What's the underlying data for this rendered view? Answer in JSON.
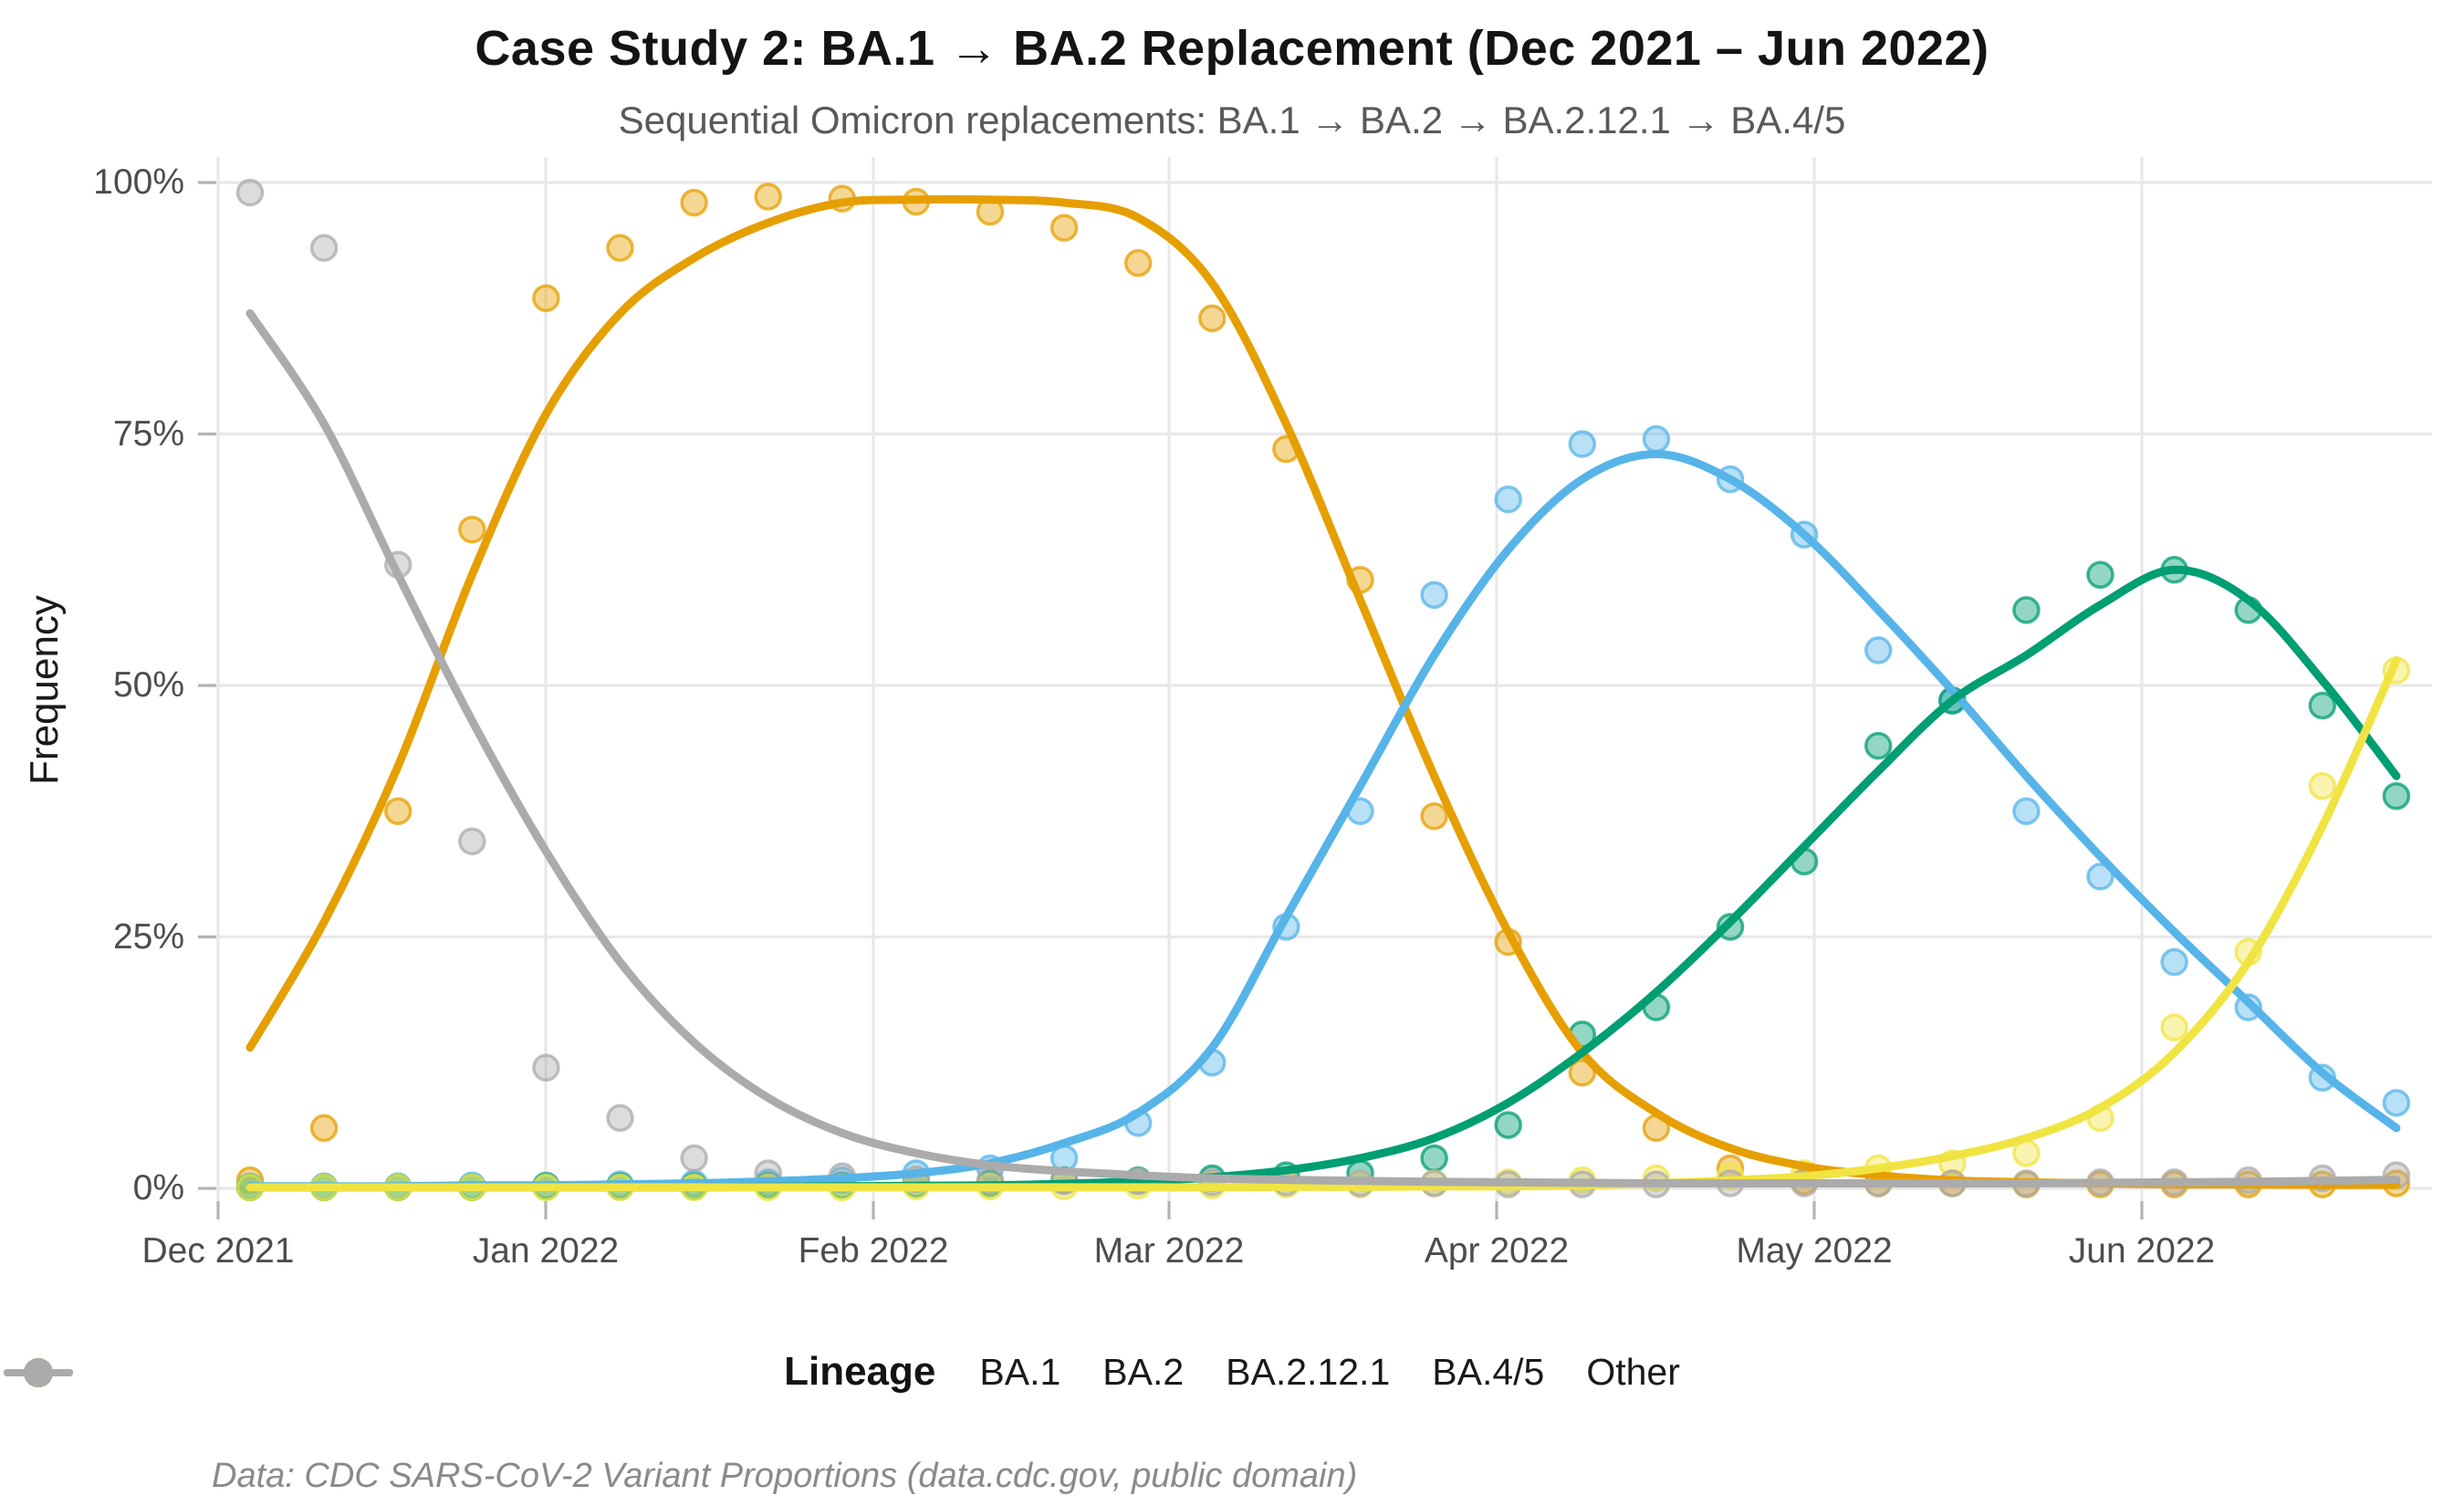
{
  "title": "Case Study 2: BA.1 → BA.2 Replacement (Dec 2021 – Jun 2022)",
  "subtitle": "Sequential Omicron replacements: BA.1 → BA.2 → BA.2.12.1 → BA.4/5",
  "caption": "Data: CDC SARS-CoV-2 Variant Proportions (data.cdc.gov, public domain)",
  "y_axis": {
    "label": "Frequency",
    "ticks": [
      {
        "label": "0%",
        "value": 0
      },
      {
        "label": "25%",
        "value": 25
      },
      {
        "label": "50%",
        "value": 50
      },
      {
        "label": "75%",
        "value": 75
      },
      {
        "label": "100%",
        "value": 100
      }
    ]
  },
  "x_axis": {
    "ticks": [
      "Dec 2021",
      "Jan 2022",
      "Feb 2022",
      "Mar 2022",
      "Apr 2022",
      "May 2022",
      "Jun 2022"
    ]
  },
  "legend": {
    "title": "Lineage",
    "items": [
      {
        "label": "BA.1",
        "color": "#E69F00"
      },
      {
        "label": "BA.2",
        "color": "#56B4E9"
      },
      {
        "label": "BA.2.12.1",
        "color": "#009E73"
      },
      {
        "label": "BA.4/5",
        "color": "#F0E442"
      },
      {
        "label": "Other",
        "color": "#ABABAB"
      }
    ]
  },
  "chart_data": {
    "type": "scatter",
    "subtype": "weekly points with smoothed trend lines",
    "title": "Case Study 2: BA.1 → BA.2 Replacement (Dec 2021 – Jun 2022)",
    "xlabel": "",
    "ylabel": "Frequency",
    "ylim": [
      0,
      100
    ],
    "grid": true,
    "legend_position": "bottom",
    "x": [
      "2021-12-04",
      "2021-12-11",
      "2021-12-18",
      "2021-12-25",
      "2022-01-01",
      "2022-01-08",
      "2022-01-15",
      "2022-01-22",
      "2022-01-29",
      "2022-02-05",
      "2022-02-12",
      "2022-02-19",
      "2022-02-26",
      "2022-03-05",
      "2022-03-12",
      "2022-03-19",
      "2022-03-26",
      "2022-04-02",
      "2022-04-09",
      "2022-04-16",
      "2022-04-23",
      "2022-04-30",
      "2022-05-07",
      "2022-05-14",
      "2022-05-21",
      "2022-05-28",
      "2022-06-04",
      "2022-06-11",
      "2022-06-18",
      "2022-06-25"
    ],
    "series": [
      {
        "name": "BA.1",
        "color": "#E69F00",
        "points": [
          0.8,
          6,
          37.5,
          65.5,
          88.5,
          93.5,
          98,
          98.6,
          98.4,
          98.1,
          97.1,
          95.5,
          92,
          86.5,
          73.5,
          60.5,
          37,
          24.5,
          11.5,
          6,
          2,
          0.7,
          0.5,
          0.5,
          0.4,
          0.4,
          0.4,
          0.4,
          0.4,
          0.5
        ],
        "trend": [
          14,
          26.5,
          42,
          61,
          77,
          87,
          92.5,
          96,
          98,
          98.3,
          98.3,
          98,
          96.5,
          90,
          76,
          58.5,
          41,
          25.5,
          13.5,
          7.5,
          4,
          2.2,
          1.3,
          0.8,
          0.6,
          0.5,
          0.4,
          0.4,
          0.35,
          0.35
        ]
      },
      {
        "name": "BA.2",
        "color": "#56B4E9",
        "points": [
          0.2,
          0.2,
          0.2,
          0.3,
          0.3,
          0.4,
          0.5,
          0.6,
          0.8,
          1.5,
          2,
          3,
          6.5,
          12.5,
          26,
          37.5,
          59,
          68.5,
          74,
          74.5,
          70.5,
          65,
          53.5,
          48.5,
          37.5,
          31,
          22.5,
          18,
          11,
          8.5
        ],
        "trend": [
          0.2,
          0.2,
          0.2,
          0.3,
          0.3,
          0.4,
          0.5,
          0.7,
          1,
          1.5,
          2.5,
          4.5,
          7.5,
          14,
          27,
          40,
          53,
          63.5,
          70.5,
          73,
          70.5,
          65,
          57.5,
          49.5,
          41,
          33,
          25.5,
          18.5,
          11.5,
          6
        ]
      },
      {
        "name": "BA.2.12.1",
        "color": "#009E73",
        "points": [
          0.1,
          0.1,
          0.1,
          0.1,
          0.2,
          0.2,
          0.2,
          0.3,
          0.3,
          0.4,
          0.5,
          0.8,
          0.8,
          1,
          1.3,
          1.5,
          3,
          6.3,
          15.3,
          18,
          26,
          32.5,
          44,
          48.5,
          57.5,
          61,
          61.5,
          57.5,
          48,
          39
        ],
        "trend": [
          0.1,
          0.1,
          0.1,
          0.1,
          0.1,
          0.1,
          0.1,
          0.15,
          0.2,
          0.25,
          0.3,
          0.45,
          0.7,
          1.1,
          1.8,
          3,
          5,
          8.5,
          13.5,
          19.5,
          26.5,
          34,
          41.5,
          48.5,
          53,
          58,
          61.5,
          58.5,
          50.5,
          41
        ]
      },
      {
        "name": "BA.4/5",
        "color": "#F0E442",
        "points": [
          0.1,
          0.1,
          0.1,
          0.1,
          0.1,
          0.1,
          0.1,
          0.1,
          0.1,
          0.2,
          0.2,
          0.2,
          0.3,
          0.3,
          0.4,
          0.4,
          0.5,
          0.6,
          0.8,
          1,
          1.2,
          1.5,
          2,
          2.5,
          3.5,
          7,
          16,
          23.5,
          40,
          51.5
        ],
        "trend": [
          0.1,
          0.1,
          0.1,
          0.1,
          0.1,
          0.1,
          0.1,
          0.1,
          0.1,
          0.1,
          0.1,
          0.1,
          0.1,
          0.1,
          0.15,
          0.15,
          0.2,
          0.2,
          0.3,
          0.5,
          0.8,
          1.2,
          2,
          3.2,
          5,
          8,
          13.5,
          22.5,
          36,
          52.5
        ]
      },
      {
        "name": "Other",
        "color": "#ABABAB",
        "points": [
          99,
          93.5,
          62,
          34.5,
          12,
          7,
          3,
          1.5,
          1.2,
          0.9,
          0.8,
          0.7,
          0.7,
          0.6,
          0.6,
          0.5,
          0.5,
          0.4,
          0.4,
          0.4,
          0.5,
          0.5,
          0.5,
          0.5,
          0.5,
          0.6,
          0.6,
          0.8,
          1,
          1.3
        ],
        "trend": [
          87,
          76,
          61,
          46.5,
          33.5,
          22.5,
          14.5,
          9,
          5.5,
          3.5,
          2.3,
          1.7,
          1.3,
          1,
          0.85,
          0.75,
          0.65,
          0.6,
          0.55,
          0.5,
          0.5,
          0.5,
          0.5,
          0.5,
          0.5,
          0.55,
          0.6,
          0.65,
          0.75,
          0.85
        ]
      }
    ],
    "style": {
      "gridline_color": "#E8E8E8",
      "tick_color": "#B3B3B3",
      "axis_text_color": "#4D4D4D",
      "point_radius": 13.5,
      "point_fill_opacity": 0.42,
      "point_stroke_opacity": 0.75,
      "line_width": 9
    }
  }
}
